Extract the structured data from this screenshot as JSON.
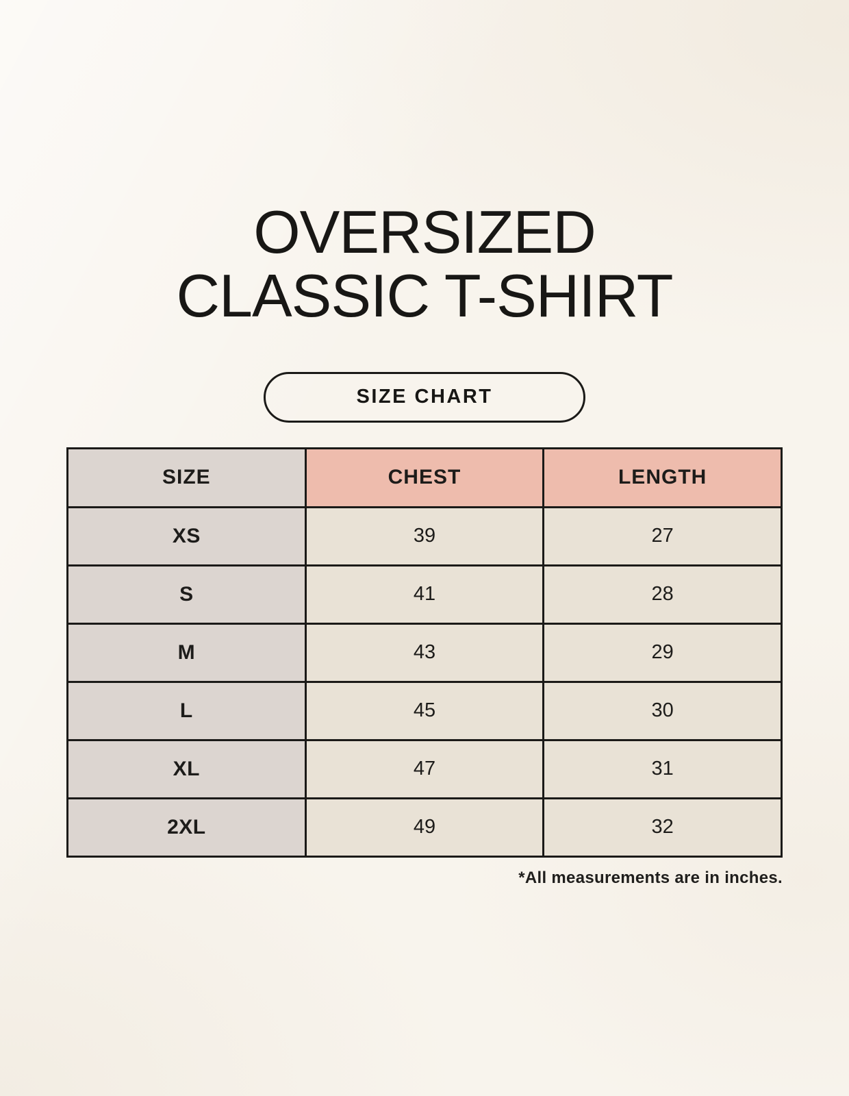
{
  "page": {
    "title_line1": "OVERSIZED",
    "title_line2": "CLASSIC T-SHIRT",
    "badge_label": "SIZE CHART",
    "footnote": "*All measurements are in inches."
  },
  "colors": {
    "background": "#f8f4ed",
    "header_pink": "#eebcad",
    "size_column_gray": "#dcd5d0",
    "cell_cream": "#e9e2d6",
    "border_black": "#1b1a18",
    "text_black": "#1d1c1a"
  },
  "size_chart": {
    "columns": [
      "SIZE",
      "CHEST",
      "LENGTH"
    ],
    "rows": [
      {
        "size": "XS",
        "chest": "39",
        "length": "27"
      },
      {
        "size": "S",
        "chest": "41",
        "length": "28"
      },
      {
        "size": "M",
        "chest": "43",
        "length": "29"
      },
      {
        "size": "L",
        "chest": "45",
        "length": "30"
      },
      {
        "size": "XL",
        "chest": "47",
        "length": "31"
      },
      {
        "size": "2XL",
        "chest": "49",
        "length": "32"
      }
    ]
  }
}
